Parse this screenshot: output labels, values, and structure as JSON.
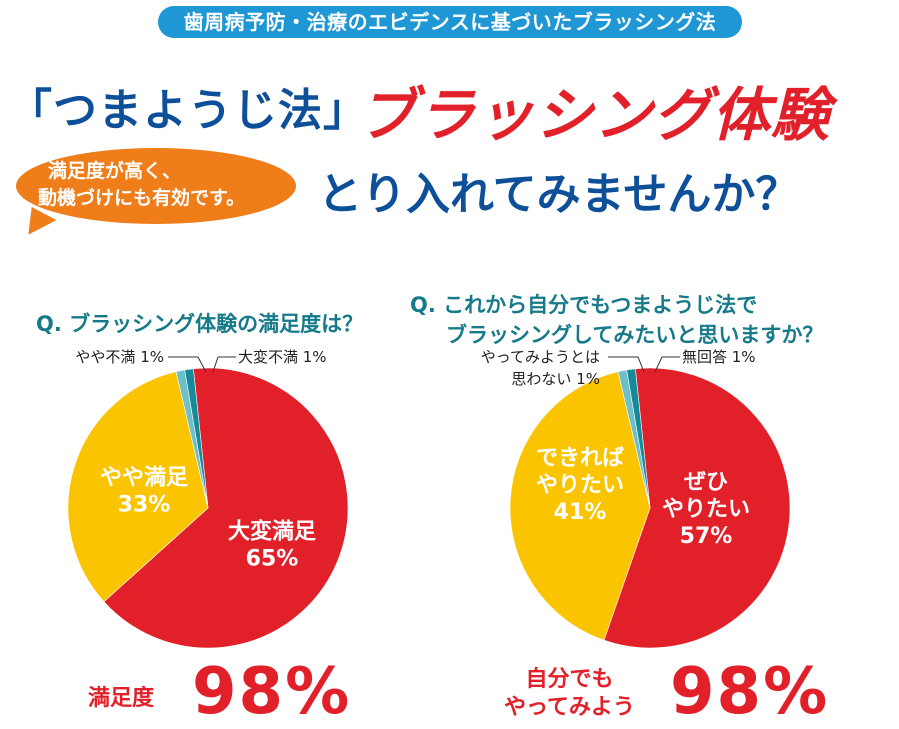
{
  "header": {
    "pill": "歯周病予防・治療のエビデンスに基づいたブラッシング法",
    "title_blue": "「つまようじ法」",
    "title_red": "ブラッシング体験",
    "subtitle": "とり入れてみませんか？",
    "bubble_line1": "満足度が高く、",
    "bubble_line2": "動機づけにも有効です。"
  },
  "colors": {
    "red": "#e2202a",
    "yellow": "#fbc400",
    "teal_light": "#6dbfca",
    "teal_dark": "#178a99",
    "blue": "#0e4f9a",
    "orange": "#ee7d1a"
  },
  "chart_data": [
    {
      "type": "pie",
      "title": "Q. ブラッシング体験の満足度は？",
      "slices": [
        {
          "label_lines": [
            "大変満足",
            "65%"
          ],
          "value": 65,
          "color": "#e2202a",
          "label_position": "inside"
        },
        {
          "label_lines": [
            "やや満足",
            "33%"
          ],
          "value": 33,
          "color": "#fbc400",
          "label_position": "inside"
        },
        {
          "label_lines": [
            "やや不満 1%"
          ],
          "value": 1,
          "color": "#6dbfca",
          "label_position": "outside"
        },
        {
          "label_lines": [
            "大変不満 1%"
          ],
          "value": 1,
          "color": "#178a99",
          "label_position": "outside"
        }
      ],
      "summary_label_lines": [
        "満足度"
      ],
      "summary_value": "98%"
    },
    {
      "type": "pie",
      "title_lines": [
        "Q. これから自分でもつまようじ法で",
        "ブラッシングしてみたいと思いますか？"
      ],
      "slices": [
        {
          "label_lines": [
            "ぜひ",
            "やりたい",
            "57%"
          ],
          "value": 57,
          "color": "#e2202a",
          "label_position": "inside"
        },
        {
          "label_lines": [
            "できれば",
            "やりたい",
            "41%"
          ],
          "value": 41,
          "color": "#fbc400",
          "label_position": "inside"
        },
        {
          "label_lines": [
            "やってみようとは",
            "思わない 1%"
          ],
          "value": 1,
          "color": "#6dbfca",
          "label_position": "outside"
        },
        {
          "label_lines": [
            "無回答 1%"
          ],
          "value": 1,
          "color": "#178a99",
          "label_position": "outside"
        }
      ],
      "summary_label_lines": [
        "自分でも",
        "やってみよう"
      ],
      "summary_value": "98%"
    }
  ]
}
